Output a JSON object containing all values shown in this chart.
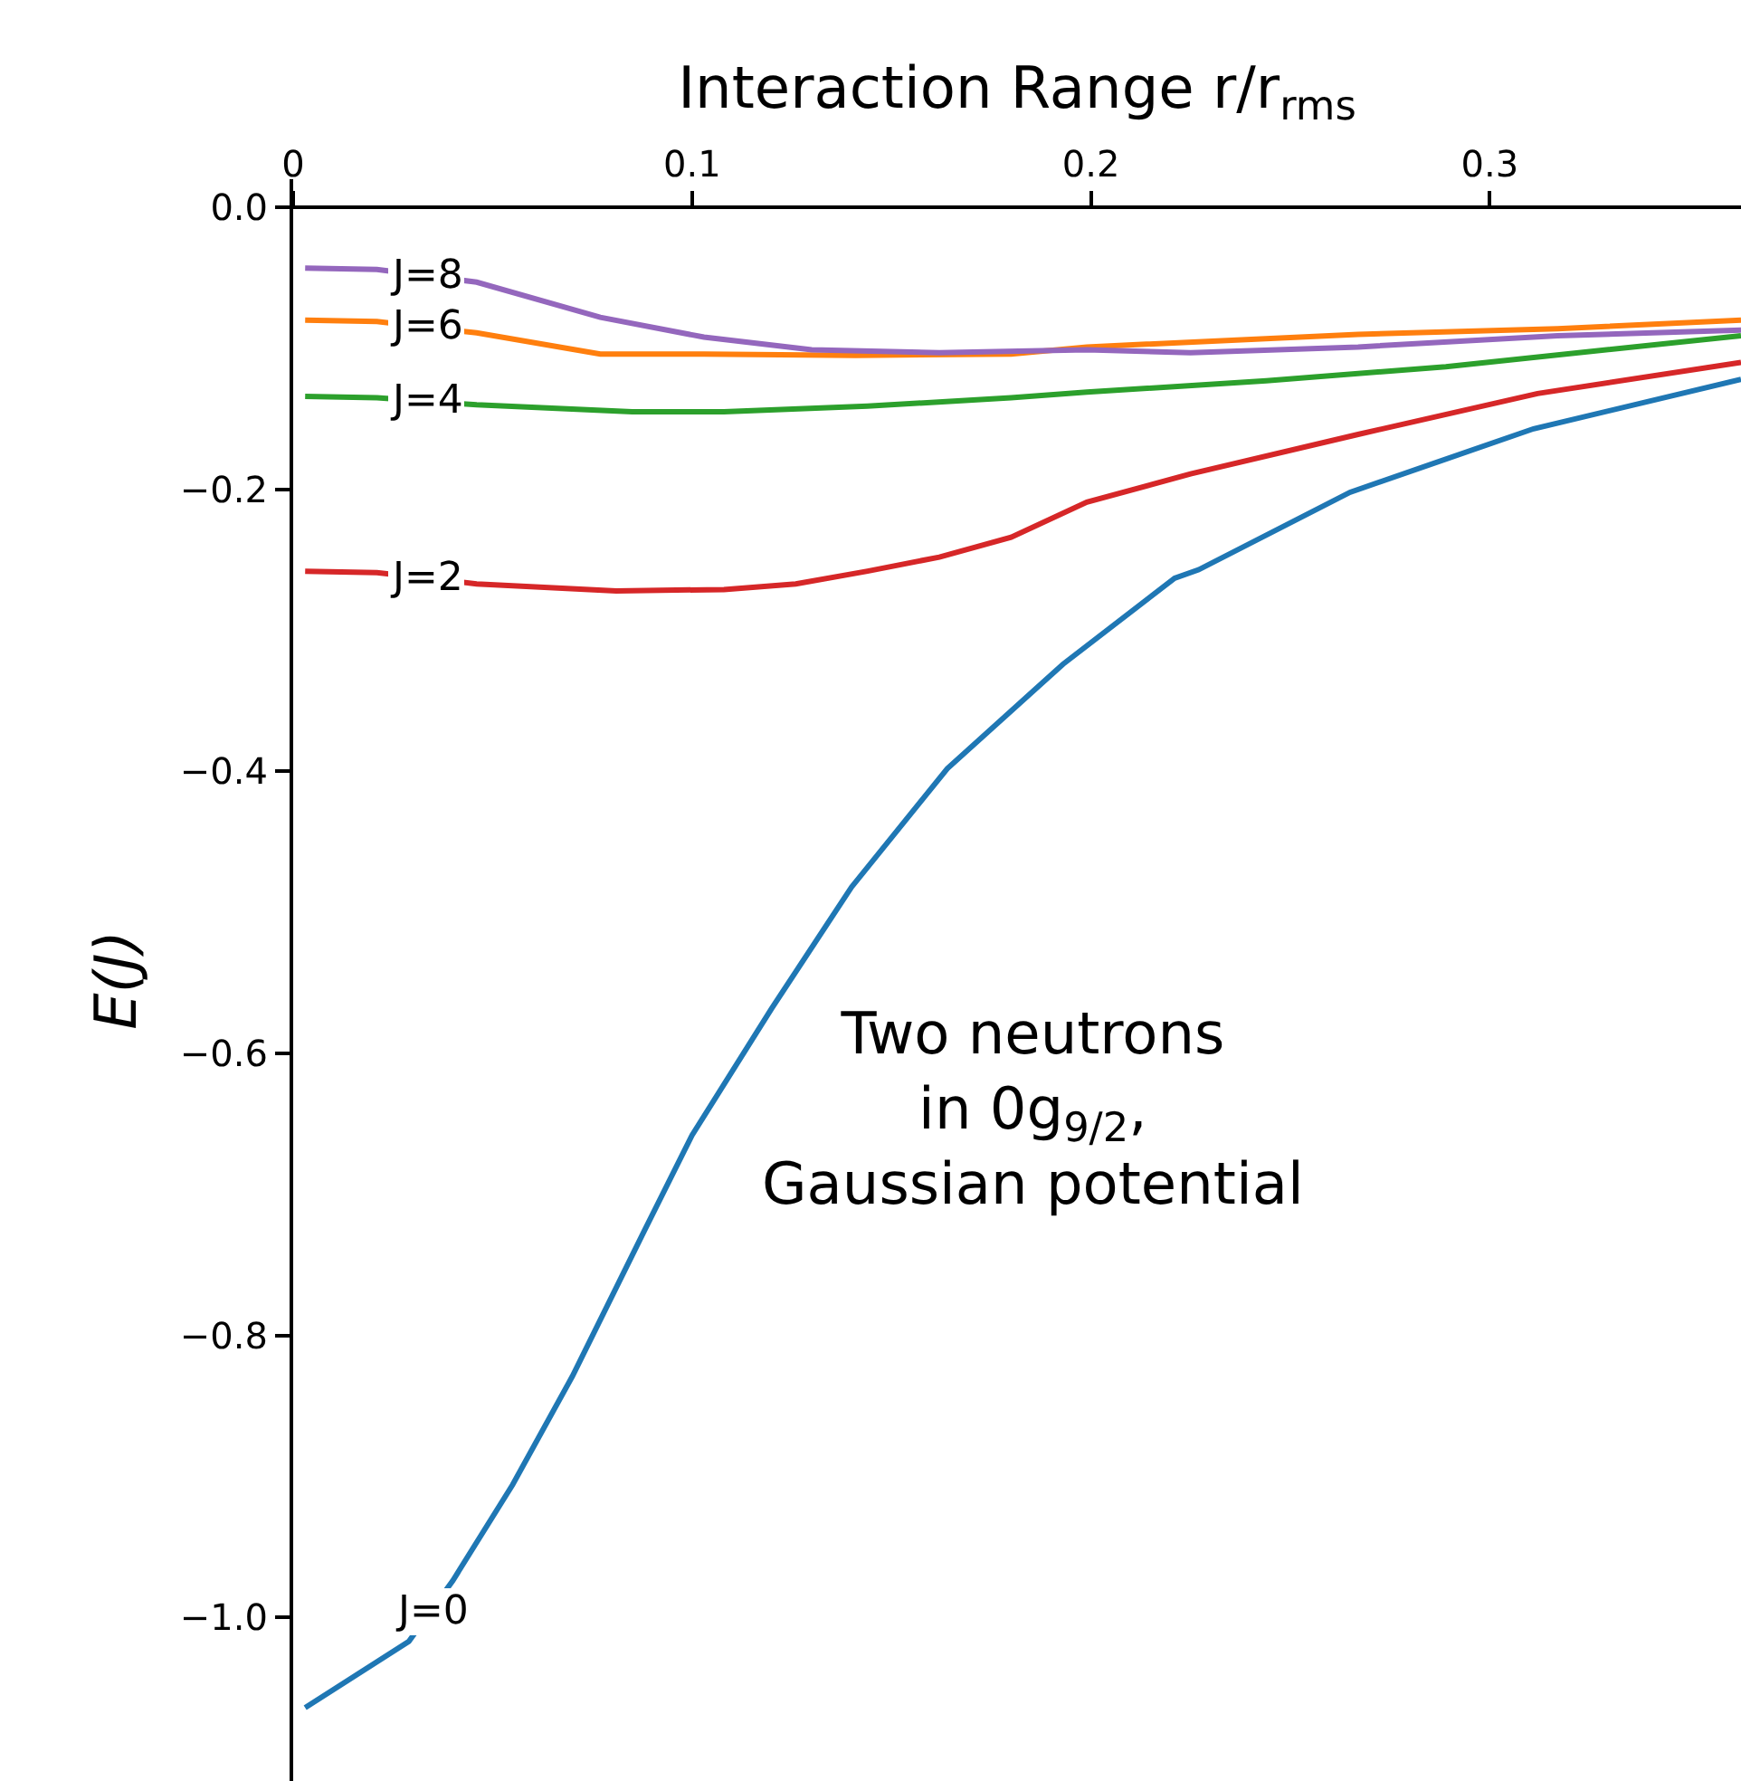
{
  "chart_data": {
    "type": "line",
    "xlabel": "Interaction Range r/r$_{rms}$",
    "ylabel": "E(J)",
    "xlim": [
      0,
      0.363
    ],
    "xticks": [
      0,
      0.1,
      0.2,
      0.3
    ],
    "ylim": [
      -1.116,
      0.02
    ],
    "yticks": [
      {
        "value": 0.0,
        "label": "0.0"
      },
      {
        "value": -0.2,
        "label": "−0.2"
      },
      {
        "value": -0.4,
        "label": "−0.4"
      },
      {
        "value": -0.6,
        "label": "−0.6"
      },
      {
        "value": -0.8,
        "label": "−0.8"
      },
      {
        "value": -1.0,
        "label": "−1.0"
      }
    ],
    "grid": false,
    "legend": false,
    "marker": "none",
    "line_style": "solid",
    "series": [
      {
        "name": "J=0",
        "color": "#1f77b4",
        "x": [
          0.003,
          0.029,
          0.04,
          0.055,
          0.07,
          0.088,
          0.1,
          0.12,
          0.14,
          0.164,
          0.193,
          0.221,
          0.227,
          0.265,
          0.311,
          0.363
        ],
        "values": [
          -1.064,
          -1.017,
          -0.974,
          -0.906,
          -0.829,
          -0.726,
          -0.658,
          -0.568,
          -0.482,
          -0.398,
          -0.324,
          -0.263,
          -0.257,
          -0.202,
          -0.157,
          -0.122
        ]
      },
      {
        "name": "J=2",
        "color": "#d62728",
        "x": [
          0.003,
          0.021,
          0.046,
          0.081,
          0.108,
          0.126,
          0.144,
          0.162,
          0.18,
          0.199,
          0.225,
          0.267,
          0.312,
          0.363
        ],
        "values": [
          -0.258,
          -0.259,
          -0.267,
          -0.272,
          -0.271,
          -0.267,
          -0.258,
          -0.248,
          -0.234,
          -0.209,
          -0.189,
          -0.161,
          -0.132,
          -0.11
        ]
      },
      {
        "name": "J=4",
        "color": "#2ca02c",
        "x": [
          0.003,
          0.021,
          0.046,
          0.085,
          0.108,
          0.144,
          0.18,
          0.199,
          0.244,
          0.289,
          0.363
        ],
        "values": [
          -0.134,
          -0.135,
          -0.14,
          -0.145,
          -0.145,
          -0.141,
          -0.135,
          -0.131,
          -0.123,
          -0.113,
          -0.091
        ]
      },
      {
        "name": "J=6",
        "color": "#ff7f0e",
        "x": [
          0.003,
          0.021,
          0.046,
          0.077,
          0.103,
          0.141,
          0.18,
          0.199,
          0.267,
          0.317,
          0.363
        ],
        "values": [
          -0.08,
          -0.081,
          -0.089,
          -0.104,
          -0.104,
          -0.105,
          -0.104,
          -0.099,
          -0.09,
          -0.086,
          -0.08
        ]
      },
      {
        "name": "J=8",
        "color": "#9467bd",
        "x": [
          0.003,
          0.021,
          0.046,
          0.077,
          0.103,
          0.13,
          0.162,
          0.199,
          0.225,
          0.267,
          0.317,
          0.363
        ],
        "values": [
          -0.043,
          -0.044,
          -0.053,
          -0.078,
          -0.092,
          -0.101,
          -0.103,
          -0.101,
          -0.103,
          -0.099,
          -0.091,
          -0.087
        ]
      }
    ],
    "annotations": [
      "Two neutrons\nin 0g$_{9/2}$,\nGaussian potential"
    ]
  }
}
